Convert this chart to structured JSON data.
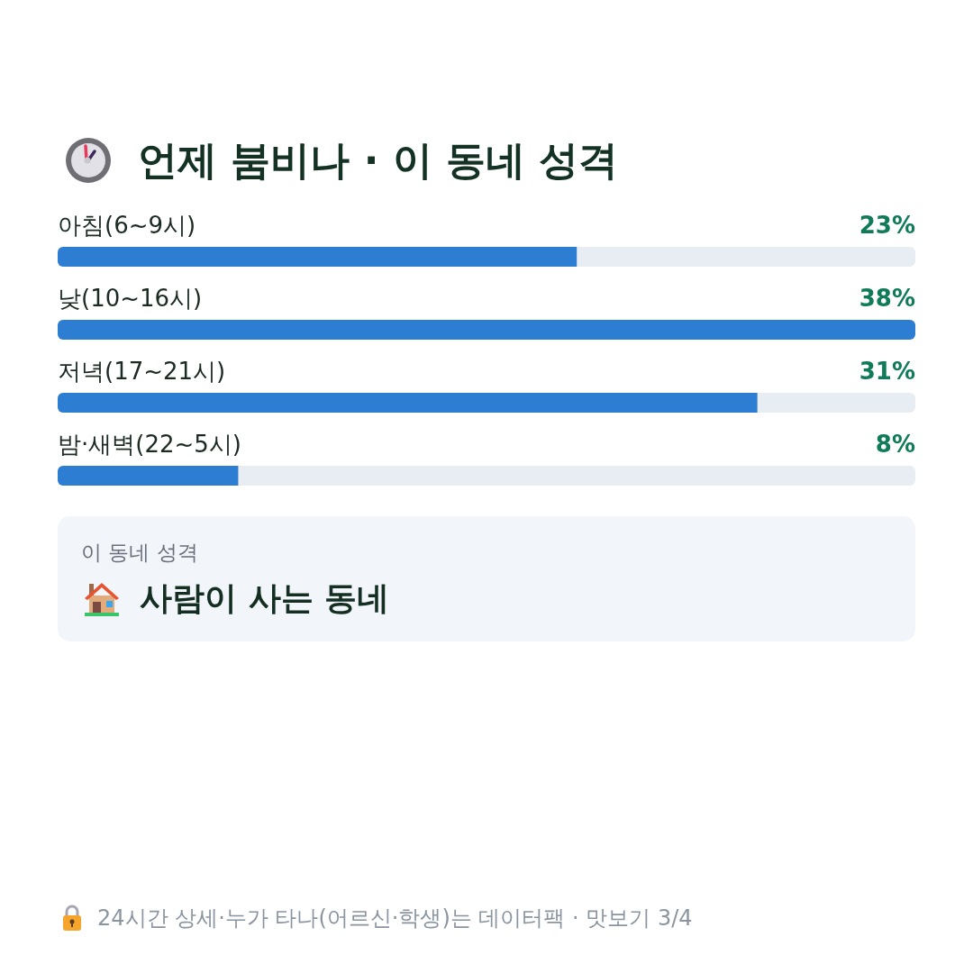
{
  "chart_data": {
    "type": "bar",
    "orientation": "horizontal",
    "title": "언제 붐비나 · 이 동네 성격",
    "categories": [
      "아침(6~9시)",
      "낮(10~16시)",
      "저녁(17~21시)",
      "밤·새벽(22~5시)"
    ],
    "values": [
      23,
      38,
      31,
      8
    ],
    "color": "#2d7dd3",
    "value_labels": [
      "23%",
      "38%",
      "31%",
      "8%"
    ],
    "tick_labels": "y",
    "annotations": [
      "이 동네 성격",
      "사람이 사는 동네",
      "24시간 상세·누가 타나(어르신·학생)는 데이터팩 · 맛보기 3/4"
    ]
  }
}
